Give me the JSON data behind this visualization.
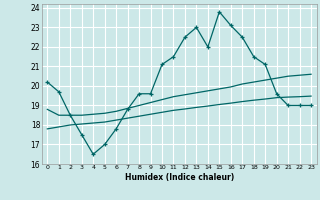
{
  "xlabel": "Humidex (Indice chaleur)",
  "ylabel": "",
  "xlim": [
    -0.5,
    23.5
  ],
  "ylim": [
    16,
    24.2
  ],
  "yticks": [
    16,
    17,
    18,
    19,
    20,
    21,
    22,
    23,
    24
  ],
  "xticks": [
    0,
    1,
    2,
    3,
    4,
    5,
    6,
    7,
    8,
    9,
    10,
    11,
    12,
    13,
    14,
    15,
    16,
    17,
    18,
    19,
    20,
    21,
    22,
    23
  ],
  "bg_color": "#cce8e8",
  "grid_color": "#ffffff",
  "line_color": "#006666",
  "line1_x": [
    0,
    1,
    2,
    3,
    4,
    5,
    6,
    7,
    8,
    9,
    10,
    11,
    12,
    13,
    14,
    15,
    16,
    17,
    18,
    19,
    20,
    21,
    22,
    23
  ],
  "line1_y": [
    20.2,
    19.7,
    18.5,
    17.5,
    16.5,
    17.0,
    17.8,
    18.8,
    19.6,
    19.6,
    21.1,
    21.5,
    22.5,
    23.0,
    22.0,
    23.8,
    23.1,
    22.5,
    21.5,
    21.1,
    19.6,
    19.0,
    19.0,
    19.0
  ],
  "line2_x": [
    0,
    1,
    2,
    3,
    4,
    5,
    6,
    7,
    8,
    9,
    10,
    11,
    12,
    13,
    14,
    15,
    16,
    17,
    18,
    19,
    20,
    21,
    22,
    23
  ],
  "line2_y": [
    18.8,
    18.5,
    18.5,
    18.5,
    18.55,
    18.6,
    18.7,
    18.85,
    19.0,
    19.15,
    19.3,
    19.45,
    19.55,
    19.65,
    19.75,
    19.85,
    19.95,
    20.1,
    20.2,
    20.3,
    20.4,
    20.5,
    20.55,
    20.6
  ],
  "line3_x": [
    0,
    1,
    2,
    3,
    4,
    5,
    6,
    7,
    8,
    9,
    10,
    11,
    12,
    13,
    14,
    15,
    16,
    17,
    18,
    19,
    20,
    21,
    22,
    23
  ],
  "line3_y": [
    17.8,
    17.9,
    18.0,
    18.05,
    18.1,
    18.15,
    18.25,
    18.35,
    18.45,
    18.55,
    18.65,
    18.75,
    18.82,
    18.9,
    18.97,
    19.05,
    19.12,
    19.2,
    19.27,
    19.33,
    19.4,
    19.43,
    19.45,
    19.48
  ]
}
